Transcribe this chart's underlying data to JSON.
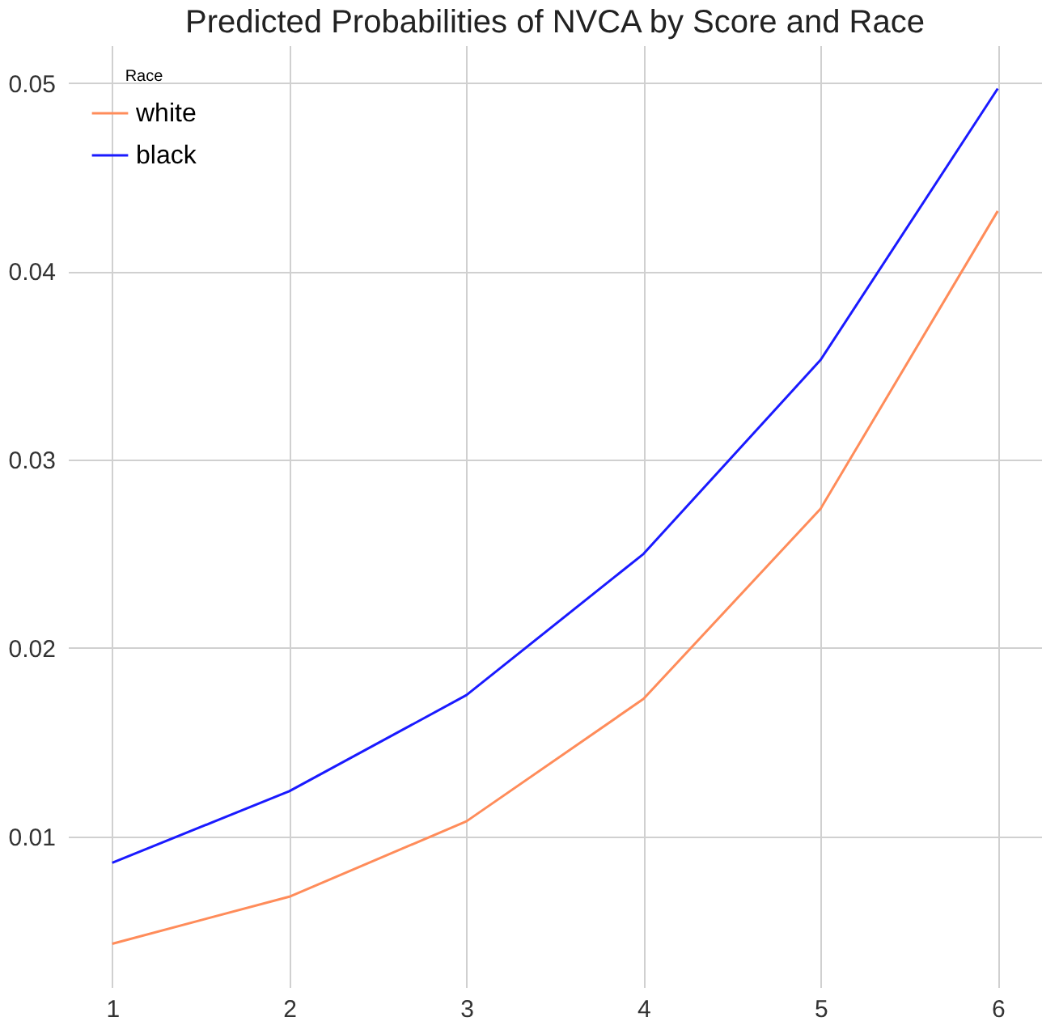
{
  "chart_data": {
    "type": "line",
    "title": "Predicted Probabilities of NVCA by Score and Race",
    "x": [
      1,
      2,
      3,
      4,
      5,
      6
    ],
    "series": [
      {
        "name": "white",
        "color": "#ff8c5a",
        "values": [
          0.0043,
          0.0068,
          0.0108,
          0.0173,
          0.0274,
          0.0432
        ]
      },
      {
        "name": "black",
        "color": "#1a1aff",
        "values": [
          0.0086,
          0.0124,
          0.0175,
          0.025,
          0.0353,
          0.0497
        ]
      }
    ],
    "legend_title": "Race",
    "legend": "top left",
    "xlim": [
      0.75,
      6.25
    ],
    "xticks": [
      1,
      2,
      3,
      4,
      5,
      6
    ],
    "ylim": [
      0.002,
      0.052
    ],
    "yticks": [
      0.01,
      0.02,
      0.03,
      0.04,
      0.05
    ],
    "grid": true,
    "marker": "none",
    "line_style": "solid"
  }
}
